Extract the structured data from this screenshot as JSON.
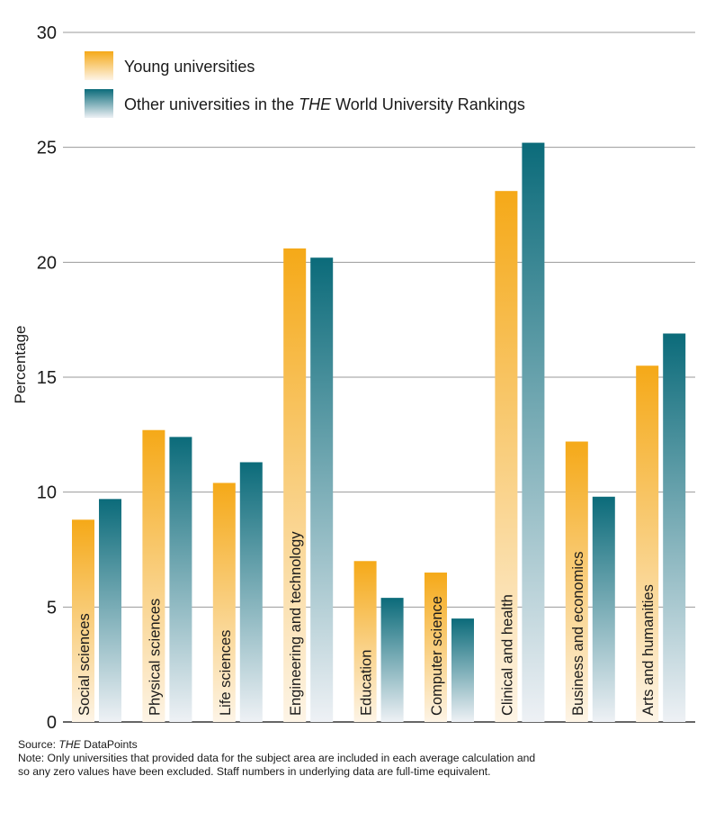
{
  "chart_data": {
    "type": "bar",
    "title": "",
    "xlabel": "",
    "ylabel": "Percentage",
    "ylim": [
      0,
      30
    ],
    "yticks": [
      0,
      5,
      10,
      15,
      20,
      25,
      30
    ],
    "grid": true,
    "legend_position": "top-left",
    "categories": [
      "Social sciences",
      "Physical sciences",
      "Life sciences",
      "Engineering and technology",
      "Education",
      "Computer science",
      "Clinical and health",
      "Business and economics",
      "Arts and humanities"
    ],
    "series": [
      {
        "name": "Young universities",
        "values": [
          8.8,
          12.7,
          10.4,
          20.6,
          7.0,
          6.5,
          23.1,
          12.2,
          15.5
        ]
      },
      {
        "name": "Other universities in the THE World University Rankings",
        "values": [
          9.7,
          12.4,
          11.3,
          20.2,
          5.4,
          4.5,
          25.2,
          9.8,
          16.9
        ]
      }
    ],
    "legend": {
      "young": "Young universities",
      "other_prefix": "Other universities in the ",
      "other_em": "THE",
      "other_suffix": " World University Rankings"
    }
  },
  "colors": {
    "young_top": "#f5a918",
    "young_bottom": "#fdf4e6",
    "other_top": "#0b6b7a",
    "other_bottom": "#eef1f5",
    "grid": "#9a9a9a",
    "axis": "#333333"
  },
  "notes": {
    "source_prefix": "Source: ",
    "source_em": "THE",
    "source_suffix": " DataPoints",
    "note_line1": "Note: Only universities that provided data for the subject area are included in each average calculation and",
    "note_line2": "so any zero values have been excluded. Staff numbers in underlying data are full-time equivalent."
  }
}
